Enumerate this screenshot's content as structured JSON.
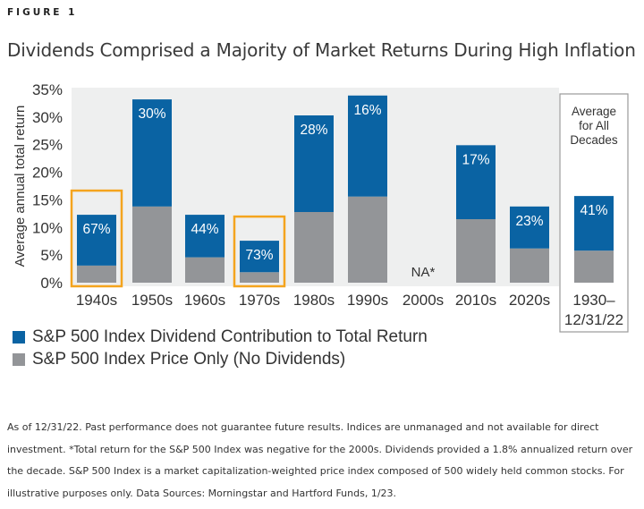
{
  "figure_label": "FIGURE 1",
  "title": "Dividends Comprised a Majority of Market Returns During High Inflation",
  "colors": {
    "dividend": "#0a63a3",
    "price": "#939598",
    "plot_bg": "#eeefef",
    "highlight": "#f4a41e",
    "avg_box": "#9a9a9a"
  },
  "chart_data": {
    "type": "bar",
    "stacked": true,
    "title": "Dividends Comprised a Majority of Market Returns During High Inflation",
    "xlabel": "",
    "ylabel": "Average annual total return",
    "ylim": [
      0,
      35
    ],
    "yticks": [
      "0%",
      "5%",
      "10%",
      "15%",
      "20%",
      "25%",
      "30%",
      "35%"
    ],
    "ytick_values": [
      0,
      5,
      10,
      15,
      20,
      25,
      30,
      35
    ],
    "categories": [
      "1940s",
      "1950s",
      "1960s",
      "1970s",
      "1980s",
      "1990s",
      "2000s",
      "2010s",
      "2020s",
      "1930–\n12/31/22"
    ],
    "category_lines": [
      [
        "1940s"
      ],
      [
        "1950s"
      ],
      [
        "1960s"
      ],
      [
        "1970s"
      ],
      [
        "1980s"
      ],
      [
        "1990s"
      ],
      [
        "2000s"
      ],
      [
        "2010s"
      ],
      [
        "2020s"
      ],
      [
        "1930–",
        "12/31/22"
      ]
    ],
    "series": [
      {
        "name": "S&P 500 Index Price Only (No Dividends)",
        "values": [
          3.1,
          13.8,
          4.6,
          1.9,
          12.8,
          15.6,
          null,
          11.5,
          6.2,
          5.8
        ]
      },
      {
        "name": "S&P 500 Index Dividend Contribution to Total Return",
        "values": [
          9.2,
          19.4,
          7.7,
          5.7,
          17.5,
          18.3,
          null,
          13.4,
          7.6,
          9.9
        ]
      }
    ],
    "totals": [
      12.3,
      33.2,
      12.3,
      7.6,
      30.3,
      33.9,
      null,
      24.9,
      13.8,
      15.7
    ],
    "data_labels": [
      "67%",
      "30%",
      "44%",
      "73%",
      "28%",
      "16%",
      "",
      "17%",
      "23%",
      "41%"
    ],
    "na_label": "NA*",
    "na_category": "2000s",
    "highlighted_categories": [
      "1940s",
      "1970s"
    ],
    "average_note": [
      "Average",
      "for All",
      "Decades"
    ],
    "legend": [
      {
        "label": "S&P 500 Index Dividend Contribution to Total Return",
        "color": "#0a63a3"
      },
      {
        "label": "S&P 500 Index Price Only (No Dividends)",
        "color": "#939598"
      }
    ],
    "legend_position": "bottom-left",
    "grid": false
  },
  "footnote": "As of 12/31/22. Past performance does not guarantee future results. Indices are unmanaged and not available for direct investment. *Total return for the S&P 500 Index was negative for the 2000s. Dividends provided a 1.8% annualized return over the decade. S&P 500 Index is a market capitalization-weighted price index composed of 500 widely held common stocks. For illustrative purposes only. Data Sources: Morningstar and Hartford Funds, 1/23."
}
